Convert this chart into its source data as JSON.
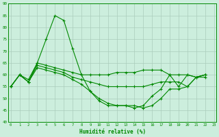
{
  "xlabel": "Humidité relative (%)",
  "bg_color": "#cceedd",
  "grid_color": "#aaccbb",
  "line_color": "#008800",
  "xlim_min": -0.3,
  "xlim_max": 23.3,
  "ylim": [
    40,
    90
  ],
  "yticks": [
    40,
    45,
    50,
    55,
    60,
    65,
    70,
    75,
    80,
    85,
    90
  ],
  "xticks": [
    0,
    1,
    2,
    3,
    4,
    5,
    6,
    7,
    8,
    9,
    10,
    11,
    12,
    13,
    14,
    15,
    16,
    17,
    18,
    19,
    20,
    21,
    22,
    23
  ],
  "series": [
    [
      55,
      60,
      58,
      65,
      75,
      85,
      83,
      71,
      60,
      53,
      49,
      47,
      47,
      47,
      46,
      47,
      51,
      54,
      60,
      55,
      60,
      59,
      59
    ],
    [
      55,
      60,
      57,
      65,
      64,
      63,
      62,
      61,
      60,
      60,
      60,
      60,
      61,
      61,
      61,
      62,
      62,
      62,
      60,
      60,
      60,
      59,
      60
    ],
    [
      55,
      60,
      57,
      64,
      63,
      62,
      61,
      59,
      58,
      57,
      56,
      55,
      55,
      55,
      55,
      55,
      56,
      57,
      57,
      57,
      55,
      59,
      60
    ],
    [
      55,
      60,
      57,
      63,
      62,
      61,
      60,
      58,
      56,
      53,
      50,
      48,
      47,
      47,
      47,
      46,
      47,
      50,
      54,
      54,
      55,
      59,
      60
    ]
  ]
}
